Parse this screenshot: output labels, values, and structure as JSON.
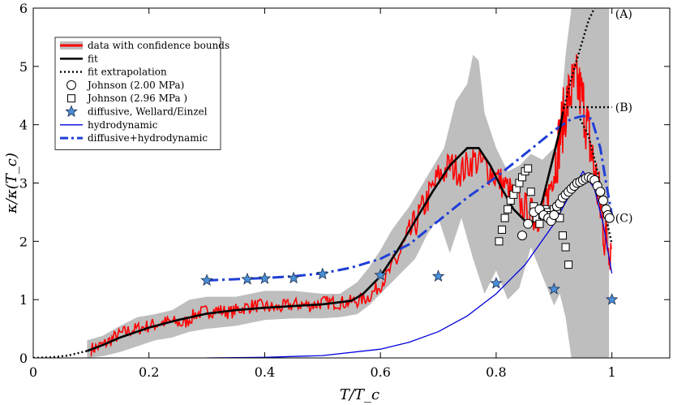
{
  "chart_data": {
    "type": "line",
    "title": "",
    "xlabel": "T/T_c",
    "ylabel": "κ/κ(T_c)",
    "xlim": [
      0,
      1.1
    ],
    "ylim": [
      0,
      6
    ],
    "xticks": [
      "0",
      "0.2",
      "0.4",
      "0.6",
      "0.8",
      "1"
    ],
    "xtick_values": [
      0,
      0.2,
      0.4,
      0.6,
      0.8,
      1.0
    ],
    "yticks": [
      "0",
      "1",
      "2",
      "3",
      "4",
      "5",
      "6"
    ],
    "ytick_values": [
      0,
      1,
      2,
      3,
      4,
      5,
      6
    ],
    "legend": {
      "position": "top-left",
      "entries": [
        "data with confidence bounds",
        "fit",
        "fit extrapolation",
        "Johnson (2.00 MPa)",
        "Johnson (2.96 MPa )",
        "diffusive, Wellard/Einzel",
        "hydrodynamic",
        "diffusive+hydrodynamic"
      ]
    },
    "annotations": [
      {
        "text": "(A)",
        "x": 1.003,
        "y": 5.9
      },
      {
        "text": "(B)",
        "x": 1.003,
        "y": 4.3
      },
      {
        "text": "(C)",
        "x": 1.003,
        "y": 2.4
      }
    ],
    "colors": {
      "data": "#ff0000",
      "band": "#bebebe",
      "fit": "#000000",
      "hydro": "#0000dd",
      "diff_hydro": "#1f3fd6",
      "star": "#4a90d9"
    },
    "series": [
      {
        "name": "confidence_band",
        "upper_x": [
          0.093,
          0.12,
          0.15,
          0.18,
          0.21,
          0.24,
          0.27,
          0.3,
          0.35,
          0.4,
          0.45,
          0.5,
          0.53,
          0.56,
          0.58,
          0.6,
          0.62,
          0.65,
          0.68,
          0.71,
          0.73,
          0.75,
          0.76,
          0.77,
          0.78,
          0.8,
          0.82,
          0.84,
          0.86,
          0.88,
          0.9,
          0.91,
          0.92,
          0.93,
          0.94,
          0.96,
          0.98,
          0.995
        ],
        "upper_y": [
          0.3,
          0.38,
          0.55,
          0.7,
          0.75,
          0.82,
          1.0,
          1.05,
          1.05,
          1.15,
          1.15,
          1.1,
          1.1,
          1.3,
          1.55,
          1.85,
          2.2,
          2.6,
          3.1,
          3.6,
          4.4,
          4.7,
          5.2,
          5.1,
          4.2,
          3.6,
          3.2,
          3.3,
          3.5,
          3.4,
          3.6,
          4.0,
          5.2,
          6.0,
          6.0,
          6.0,
          6.0,
          6.0
        ],
        "lower_x": [
          0.995,
          0.98,
          0.96,
          0.94,
          0.93,
          0.92,
          0.91,
          0.9,
          0.88,
          0.86,
          0.84,
          0.82,
          0.8,
          0.78,
          0.76,
          0.74,
          0.72,
          0.7,
          0.68,
          0.66,
          0.64,
          0.62,
          0.6,
          0.58,
          0.56,
          0.53,
          0.5,
          0.45,
          0.4,
          0.35,
          0.3,
          0.27,
          0.24,
          0.21,
          0.18,
          0.15,
          0.12,
          0.093
        ],
        "lower_y": [
          0.0,
          0.0,
          0.0,
          0.0,
          0.0,
          0.7,
          1.1,
          0.9,
          1.4,
          1.9,
          1.2,
          1.0,
          1.5,
          1.1,
          1.7,
          2.4,
          1.8,
          2.4,
          2.1,
          1.7,
          1.5,
          1.3,
          1.1,
          0.9,
          0.75,
          0.7,
          0.68,
          0.68,
          0.65,
          0.55,
          0.5,
          0.45,
          0.35,
          0.3,
          0.2,
          0.1,
          0.03,
          0.0
        ]
      },
      {
        "name": "data",
        "x": [
          0.1,
          0.12,
          0.14,
          0.16,
          0.18,
          0.2,
          0.22,
          0.24,
          0.26,
          0.28,
          0.3,
          0.32,
          0.34,
          0.36,
          0.38,
          0.4,
          0.42,
          0.44,
          0.46,
          0.48,
          0.5,
          0.52,
          0.54,
          0.56,
          0.58,
          0.6,
          0.62,
          0.64,
          0.66,
          0.68,
          0.7,
          0.72,
          0.74,
          0.76,
          0.78,
          0.8,
          0.82,
          0.84,
          0.86,
          0.87,
          0.88,
          0.89,
          0.9,
          0.91,
          0.92,
          0.93,
          0.94,
          0.95,
          0.96,
          0.97,
          0.98,
          0.99,
          1.0
        ],
        "y": [
          0.15,
          0.22,
          0.35,
          0.45,
          0.5,
          0.55,
          0.6,
          0.62,
          0.58,
          0.75,
          0.8,
          0.82,
          0.78,
          0.85,
          0.9,
          0.88,
          0.85,
          0.9,
          0.92,
          0.9,
          0.95,
          0.95,
          0.95,
          0.98,
          1.05,
          1.25,
          1.55,
          1.9,
          2.3,
          2.7,
          3.1,
          3.3,
          3.2,
          3.4,
          3.3,
          3.1,
          2.9,
          2.65,
          2.5,
          2.4,
          2.5,
          2.8,
          3.2,
          3.8,
          4.3,
          4.6,
          4.7,
          4.4,
          3.8,
          3.2,
          2.6,
          2.0,
          2.0
        ]
      },
      {
        "name": "fit",
        "x": [
          0.093,
          0.12,
          0.15,
          0.2,
          0.25,
          0.3,
          0.35,
          0.4,
          0.45,
          0.5,
          0.55,
          0.57,
          0.6,
          0.63,
          0.66,
          0.69,
          0.72,
          0.75,
          0.77,
          0.79,
          0.81,
          0.83,
          0.85,
          0.86,
          0.87,
          0.88,
          0.89,
          0.9,
          0.91,
          0.915
        ],
        "y": [
          0.12,
          0.22,
          0.35,
          0.52,
          0.65,
          0.76,
          0.82,
          0.86,
          0.89,
          0.92,
          0.98,
          1.1,
          1.4,
          1.85,
          2.35,
          2.85,
          3.3,
          3.6,
          3.6,
          3.3,
          2.9,
          2.55,
          2.35,
          2.3,
          2.4,
          2.7,
          3.1,
          3.5,
          3.9,
          4.2
        ]
      },
      {
        "name": "fit_extrapolation_low",
        "x": [
          0.0,
          0.03,
          0.06,
          0.093
        ],
        "y": [
          0.0,
          0.01,
          0.04,
          0.12
        ]
      },
      {
        "name": "fit_extrapolation_A",
        "x": [
          0.915,
          0.93,
          0.945,
          0.96,
          0.97
        ],
        "y": [
          4.2,
          4.8,
          5.3,
          5.8,
          6.0
        ]
      },
      {
        "name": "fit_extrapolation_B",
        "x": [
          0.915,
          1.0
        ],
        "y": [
          4.3,
          4.3
        ]
      },
      {
        "name": "fit_extrapolation_C",
        "x": [
          0.945,
          0.96,
          0.975,
          0.99,
          1.0
        ],
        "y": [
          4.1,
          3.8,
          3.2,
          2.4,
          1.95
        ]
      },
      {
        "name": "hydrodynamic",
        "x": [
          0.3,
          0.4,
          0.5,
          0.6,
          0.65,
          0.7,
          0.75,
          0.8,
          0.85,
          0.9,
          0.93,
          0.95,
          0.97,
          0.985,
          1.0
        ],
        "y": [
          0.0,
          0.01,
          0.04,
          0.15,
          0.27,
          0.45,
          0.72,
          1.1,
          1.6,
          2.3,
          2.85,
          3.2,
          2.9,
          2.3,
          1.45
        ]
      },
      {
        "name": "diffusive_plus_hydrodynamic",
        "x": [
          0.3,
          0.35,
          0.4,
          0.45,
          0.5,
          0.55,
          0.6,
          0.65,
          0.7,
          0.75,
          0.8,
          0.85,
          0.9,
          0.93,
          0.95,
          0.965,
          0.98,
          0.99,
          1.0
        ],
        "y": [
          1.33,
          1.35,
          1.37,
          1.4,
          1.45,
          1.55,
          1.7,
          1.95,
          2.35,
          2.75,
          3.1,
          3.5,
          3.9,
          4.1,
          4.15,
          4.1,
          3.6,
          3.0,
          2.45
        ]
      },
      {
        "name": "Johnson_2.00MPa",
        "x": [
          0.845,
          0.855,
          0.865,
          0.875,
          0.882,
          0.89,
          0.895,
          0.9,
          0.905,
          0.91,
          0.915,
          0.92,
          0.925,
          0.93,
          0.935,
          0.94,
          0.945,
          0.95,
          0.955,
          0.96,
          0.965,
          0.97,
          0.975,
          0.98,
          0.985,
          0.99,
          0.993,
          0.996
        ],
        "y": [
          2.1,
          2.3,
          2.5,
          2.55,
          2.45,
          2.4,
          2.35,
          2.45,
          2.6,
          2.65,
          2.75,
          2.8,
          2.85,
          2.9,
          2.95,
          3.0,
          3.02,
          3.05,
          3.08,
          3.1,
          3.08,
          3.05,
          2.95,
          2.85,
          2.7,
          2.55,
          2.45,
          2.4
        ]
      },
      {
        "name": "Johnson_2.96MPa",
        "x": [
          0.805,
          0.81,
          0.815,
          0.82,
          0.825,
          0.83,
          0.835,
          0.84,
          0.845,
          0.85,
          0.855,
          0.86,
          0.865,
          0.87,
          0.875,
          0.88,
          0.885,
          0.89,
          0.895,
          0.9,
          0.905,
          0.91,
          0.915,
          0.92,
          0.925
        ],
        "y": [
          2.0,
          2.2,
          2.4,
          2.55,
          2.7,
          2.8,
          2.9,
          3.0,
          3.1,
          3.2,
          3.25,
          2.85,
          2.6,
          2.4,
          2.3,
          2.45,
          2.55,
          2.5,
          2.45,
          2.55,
          2.55,
          2.4,
          2.1,
          1.9,
          1.6
        ]
      },
      {
        "name": "diffusive_Wellard_Einzel",
        "x": [
          0.3,
          0.37,
          0.4,
          0.45,
          0.5,
          0.6,
          0.7,
          0.8,
          0.9,
          1.0
        ],
        "y": [
          1.33,
          1.35,
          1.36,
          1.37,
          1.44,
          1.42,
          1.4,
          1.28,
          1.18,
          1.0
        ]
      }
    ]
  }
}
